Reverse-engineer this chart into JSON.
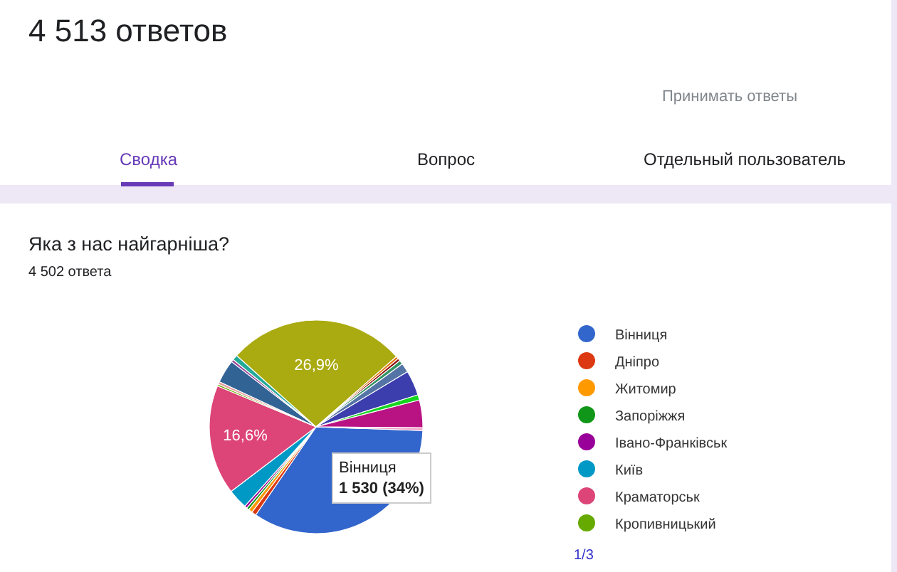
{
  "chart_data": {
    "type": "pie",
    "title": "4 513 ответов",
    "subtitle": "Яка з нас найгарніша?",
    "categories": [
      "Вінниця",
      "Дніпро",
      "Житомир",
      "Запоріжжя",
      "Івано-Франківськ",
      "Київ",
      "Краматорськ",
      "Кропивницький",
      null,
      null,
      null,
      null,
      null,
      null,
      null,
      null,
      null,
      null,
      null,
      null,
      null
    ],
    "values": [
      34,
      0.7,
      0.6,
      0.4,
      0.4,
      3.0,
      16.6,
      0.3,
      0.4,
      3.5,
      0.4,
      0.8,
      26.9,
      0.4,
      0.4,
      0.6,
      1.4,
      3.8,
      0.8,
      4.2,
      0.4
    ],
    "colors": [
      "#3366cc",
      "#dc3912",
      "#ff9900",
      "#109618",
      "#990099",
      "#0099c6",
      "#dd4477",
      "#66aa00",
      "#e8a0a0",
      "#316395",
      "#994499",
      "#22aa99",
      "#aaaa11",
      "#e67300",
      "#8b0707",
      "#329262",
      "#5574a6",
      "#3b3eac",
      "#16d620",
      "#b91383",
      "#f4a0c8"
    ],
    "value_labels": [
      null,
      null,
      null,
      null,
      null,
      null,
      "16,6%",
      null,
      null,
      null,
      null,
      null,
      "26,9%",
      null,
      null,
      null,
      null,
      null,
      null,
      null,
      null
    ],
    "legend": "right",
    "annotations": [
      "4 502 ответа",
      "Принимать ответы",
      "Сводка",
      "Вопрос",
      "Отдельный пользователь",
      "1/3",
      "Вінниця\n1 530 (34%)"
    ]
  }
}
